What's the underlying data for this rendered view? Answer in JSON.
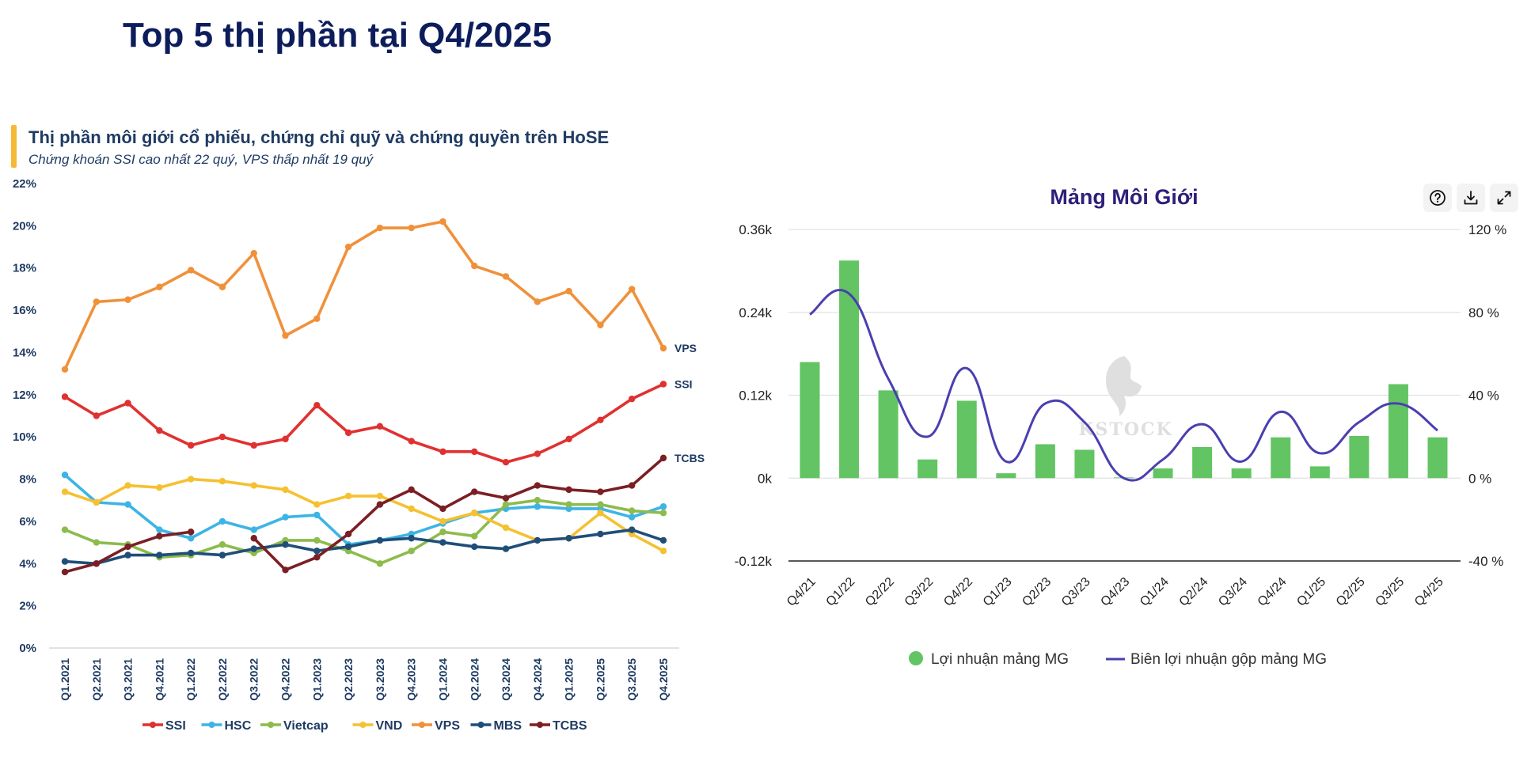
{
  "page": {
    "title": "Top 5 thị phần tại Q4/2025"
  },
  "left_panel": {
    "title": "Thị phần môi giới cổ phiếu, chứng chỉ quỹ và chứng quyền trên HoSE",
    "subtitle": "Chứng khoán SSI cao nhất 22 quý, VPS thấp nhất 19 quý",
    "accent_color": "#f5b935"
  },
  "right_panel": {
    "title": "Mảng Môi Giới",
    "icons": [
      "help-circle-icon",
      "download-icon",
      "expand-icon"
    ],
    "watermark": "KSTOCK"
  },
  "chart_data": [
    {
      "type": "line",
      "title": "Thị phần môi giới cổ phiếu, chứng chỉ quỹ và chứng quyền trên HoSE",
      "subtitle": "Chứng khoán SSI cao nhất 22 quý, VPS thấp nhất 19 quý",
      "xlabel": "",
      "ylabel": "",
      "ylim": [
        0,
        22
      ],
      "yticks": [
        "0%",
        "2%",
        "4%",
        "6%",
        "8%",
        "10%",
        "12%",
        "14%",
        "16%",
        "18%",
        "20%",
        "22%"
      ],
      "ytick_values": [
        0,
        2,
        4,
        6,
        8,
        10,
        12,
        14,
        16,
        18,
        20,
        22
      ],
      "grid": false,
      "legend_position": "bottom",
      "categories": [
        "Q1.2021",
        "Q2.2021",
        "Q3.2021",
        "Q4.2021",
        "Q1.2022",
        "Q2.2022",
        "Q3.2022",
        "Q4.2022",
        "Q1.2023",
        "Q2.2023",
        "Q3.2023",
        "Q4.2023",
        "Q1.2024",
        "Q2.2024",
        "Q3.2024",
        "Q4.2024",
        "Q1.2025",
        "Q2.2025",
        "Q3.2025",
        "Q4.2025"
      ],
      "series": [
        {
          "name": "SSI",
          "color": "#e03131",
          "end_label": "SSI",
          "values": [
            11.9,
            11.0,
            11.6,
            10.3,
            9.6,
            10.0,
            9.6,
            9.9,
            11.5,
            10.2,
            10.5,
            9.8,
            9.3,
            9.3,
            8.8,
            9.2,
            9.9,
            10.8,
            11.8,
            12.5
          ]
        },
        {
          "name": "HSC",
          "color": "#3db4e6",
          "end_label": "",
          "values": [
            8.2,
            6.9,
            6.8,
            5.6,
            5.2,
            6.0,
            5.6,
            6.2,
            6.3,
            4.9,
            5.1,
            5.4,
            5.9,
            6.4,
            6.6,
            6.7,
            6.6,
            6.6,
            6.2,
            6.7
          ]
        },
        {
          "name": "Vietcap",
          "color": "#8dbb4c",
          "end_label": "",
          "values": [
            5.6,
            5.0,
            4.9,
            4.3,
            4.4,
            4.9,
            4.5,
            5.1,
            5.1,
            4.6,
            4.0,
            4.6,
            5.5,
            5.3,
            6.8,
            7.0,
            6.8,
            6.8,
            6.5,
            6.4
          ]
        },
        {
          "name": "VND",
          "color": "#f5c131",
          "end_label": "",
          "values": [
            7.4,
            6.9,
            7.7,
            7.6,
            8.0,
            7.9,
            7.7,
            7.5,
            6.8,
            7.2,
            7.2,
            6.6,
            6.0,
            6.4,
            5.7,
            5.1,
            5.2,
            6.4,
            5.4,
            4.6
          ]
        },
        {
          "name": "VPS",
          "color": "#f0913a",
          "end_label": "VPS",
          "values": [
            13.2,
            16.4,
            16.5,
            17.1,
            17.9,
            17.1,
            18.7,
            14.8,
            15.6,
            19.0,
            19.9,
            19.9,
            20.2,
            18.1,
            17.6,
            16.4,
            16.9,
            15.3,
            17.0,
            14.2
          ]
        },
        {
          "name": "MBS",
          "color": "#1f4e79",
          "end_label": "",
          "values": [
            4.1,
            4.0,
            4.4,
            4.4,
            4.5,
            4.4,
            4.7,
            4.9,
            4.6,
            4.8,
            5.1,
            5.2,
            5.0,
            4.8,
            4.7,
            5.1,
            5.2,
            5.4,
            5.6,
            5.1
          ]
        },
        {
          "name": "TCBS",
          "color": "#7b1f24",
          "end_label": "TCBS",
          "values": [
            3.6,
            4.0,
            4.8,
            5.3,
            5.5,
            null,
            5.2,
            3.7,
            4.3,
            5.4,
            6.8,
            7.5,
            6.6,
            7.4,
            7.1,
            7.7,
            7.5,
            7.4,
            7.7,
            9.0
          ]
        }
      ]
    },
    {
      "type": "bar",
      "title": "Mảng Môi Giới",
      "xlabel": "",
      "ylabel": "",
      "grid": true,
      "legend_position": "bottom",
      "categories": [
        "Q4/21",
        "Q1/22",
        "Q2/22",
        "Q3/22",
        "Q4/22",
        "Q1/23",
        "Q2/23",
        "Q3/23",
        "Q4/23",
        "Q1/24",
        "Q2/24",
        "Q3/24",
        "Q4/24",
        "Q1/25",
        "Q2/25",
        "Q3/25",
        "Q4/25"
      ],
      "y_left": {
        "ylim": [
          -0.12,
          0.36
        ],
        "ticks": [
          "-0.12k",
          "0k",
          "0.12k",
          "0.24k",
          "0.36k"
        ],
        "tick_values": [
          -0.12,
          0,
          0.12,
          0.24,
          0.36
        ]
      },
      "y_right": {
        "ylim": [
          -40,
          120
        ],
        "ticks": [
          "-40 %",
          "0 %",
          "40 %",
          "80 %",
          "120 %"
        ],
        "tick_values": [
          -40,
          0,
          40,
          80,
          120
        ]
      },
      "series": [
        {
          "name": "Lợi nhuận mảng MG",
          "type": "bar",
          "axis": "left",
          "color": "#62c462",
          "unit": "k",
          "values": [
            0.168,
            0.315,
            0.127,
            0.027,
            0.112,
            0.007,
            0.049,
            0.041,
            0.001,
            0.014,
            0.045,
            0.014,
            0.059,
            0.017,
            0.061,
            0.136,
            0.059
          ]
        },
        {
          "name": "Biên lợi nhuận gộp mảng MG",
          "type": "line",
          "axis": "right",
          "color": "#4a3fb0",
          "unit": "%",
          "values": [
            79,
            89,
            48,
            20,
            53,
            8,
            36,
            27,
            0,
            9,
            26,
            8,
            32,
            12,
            27,
            36,
            23
          ]
        }
      ]
    }
  ]
}
